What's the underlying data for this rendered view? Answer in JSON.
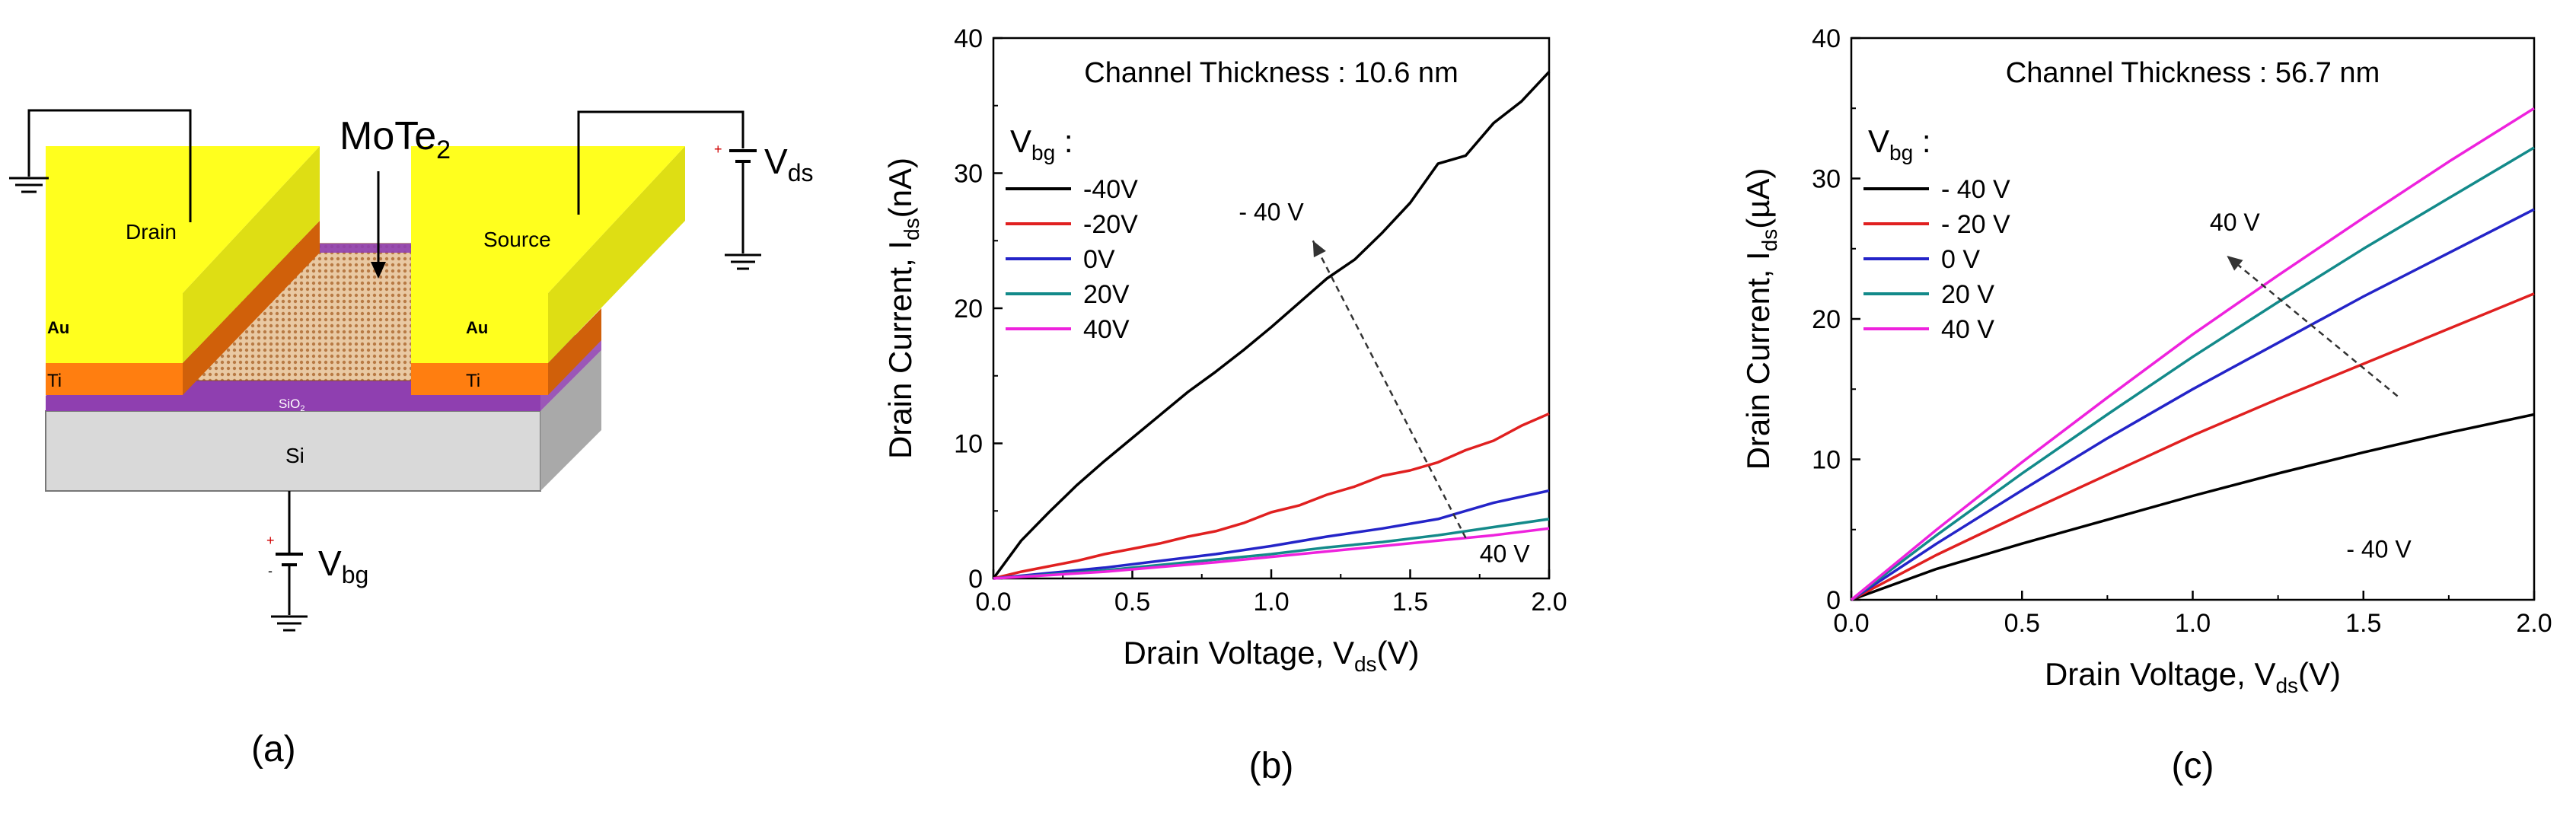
{
  "panel_a": {
    "caption": "(a)",
    "material": "MoTe",
    "material_sub": "2",
    "drain": "Drain",
    "source": "Source",
    "au_left": "Au",
    "au_right": "Au",
    "ti_left": "Ti",
    "ti_right": "Ti",
    "sio2": "SiO",
    "sio2_sub": "2",
    "si": "Si",
    "vds": "V",
    "vds_sub": "ds",
    "vbg": "V",
    "vbg_sub": "bg",
    "plus_sign": "+",
    "minus_sign": "-",
    "colors": {
      "au": "#ffff1e",
      "au_side": "#dede14",
      "ti": "#ff7e10",
      "ti_side": "#d0600a",
      "sio2": "#8f3fb0",
      "si": "#d9d9d9",
      "si_side": "#a9a9a9",
      "mote2": "#e9c9a3",
      "mote2_dot": "#b87a44"
    }
  },
  "chart_data": [
    {
      "type": "line",
      "panel": "(b)",
      "title": "Channel Thickness : 10.6 nm",
      "xlabel_main": "Drain Voltage, V",
      "xlabel_sub": "ds",
      "xlabel_tail": "(V)",
      "ylabel_main": "Drain Current, I",
      "ylabel_sub": "ds",
      "ylabel_tail": "(nA)",
      "xlim": [
        0,
        2.0
      ],
      "ylim": [
        0,
        40
      ],
      "xticks": [
        "0.0",
        "0.5",
        "1.0",
        "1.5",
        "2.0"
      ],
      "yticks": [
        "0",
        "10",
        "20",
        "30",
        "40"
      ],
      "xtick_values": [
        0,
        0.5,
        1.0,
        1.5,
        2.0
      ],
      "ytick_values": [
        0,
        10,
        20,
        30,
        40
      ],
      "legend_title": "V",
      "legend_title_sub": "bg",
      "legend_title_tail": " :",
      "legend_position": "top-left",
      "annotation_top": "- 40 V",
      "annotation_bottom": "40 V",
      "series": [
        {
          "name": "-40V",
          "color": "#000000",
          "x": [
            0,
            0.1,
            0.2,
            0.3,
            0.4,
            0.5,
            0.6,
            0.7,
            0.8,
            0.9,
            1.0,
            1.1,
            1.2,
            1.3,
            1.4,
            1.5,
            1.6,
            1.7,
            1.8,
            1.9,
            2.0
          ],
          "y": [
            0,
            2.8,
            4.9,
            6.9,
            8.7,
            10.4,
            12.1,
            13.8,
            15.3,
            16.9,
            18.6,
            20.4,
            22.2,
            23.6,
            25.6,
            27.8,
            30.7,
            31.3,
            33.7,
            35.3,
            37.5
          ]
        },
        {
          "name": "-20V",
          "color": "#e02020",
          "x": [
            0,
            0.1,
            0.2,
            0.3,
            0.4,
            0.5,
            0.6,
            0.7,
            0.8,
            0.9,
            1.0,
            1.1,
            1.2,
            1.3,
            1.4,
            1.5,
            1.6,
            1.7,
            1.8,
            1.9,
            2.0
          ],
          "y": [
            0,
            0.5,
            0.9,
            1.3,
            1.8,
            2.2,
            2.6,
            3.1,
            3.5,
            4.1,
            4.9,
            5.4,
            6.2,
            6.8,
            7.6,
            8.0,
            8.6,
            9.5,
            10.2,
            11.3,
            12.2
          ]
        },
        {
          "name": "0V",
          "color": "#2424c8",
          "x": [
            0,
            0.2,
            0.4,
            0.6,
            0.8,
            1.0,
            1.2,
            1.4,
            1.6,
            1.8,
            2.0
          ],
          "y": [
            0,
            0.4,
            0.8,
            1.3,
            1.8,
            2.4,
            3.1,
            3.7,
            4.4,
            5.6,
            6.5
          ]
        },
        {
          "name": "20V",
          "color": "#138a8a",
          "x": [
            0,
            0.2,
            0.4,
            0.6,
            0.8,
            1.0,
            1.2,
            1.4,
            1.6,
            1.8,
            2.0
          ],
          "y": [
            0,
            0.3,
            0.6,
            1.0,
            1.4,
            1.8,
            2.3,
            2.7,
            3.2,
            3.8,
            4.4
          ]
        },
        {
          "name": "40V",
          "color": "#ee22dd",
          "x": [
            0,
            0.2,
            0.4,
            0.6,
            0.8,
            1.0,
            1.2,
            1.4,
            1.6,
            1.8,
            2.0
          ],
          "y": [
            0,
            0.25,
            0.5,
            0.85,
            1.2,
            1.6,
            2.0,
            2.4,
            2.8,
            3.2,
            3.7
          ]
        }
      ]
    },
    {
      "type": "line",
      "panel": "(c)",
      "title": "Channel Thickness : 56.7 nm",
      "xlabel_main": "Drain Voltage, V",
      "xlabel_sub": "ds",
      "xlabel_tail": "(V)",
      "ylabel_main": "Drain Current, I",
      "ylabel_sub": "ds",
      "ylabel_tail": "(µA)",
      "xlim": [
        0,
        2.0
      ],
      "ylim": [
        0,
        40
      ],
      "xticks": [
        "0.0",
        "0.5",
        "1.0",
        "1.5",
        "2.0"
      ],
      "yticks": [
        "0",
        "10",
        "20",
        "30",
        "40"
      ],
      "xtick_values": [
        0,
        0.5,
        1.0,
        1.5,
        2.0
      ],
      "ytick_values": [
        0,
        10,
        20,
        30,
        40
      ],
      "legend_title": "V",
      "legend_title_sub": "bg",
      "legend_title_tail": " :",
      "legend_position": "top-left",
      "annotation_top": "40 V",
      "annotation_bottom": "- 40 V",
      "series": [
        {
          "name": "- 40 V",
          "color": "#000000",
          "x": [
            0,
            0.25,
            0.5,
            0.75,
            1.0,
            1.25,
            1.5,
            1.75,
            2.0
          ],
          "y": [
            0,
            2.2,
            4.0,
            5.7,
            7.4,
            9.0,
            10.5,
            11.9,
            13.2
          ]
        },
        {
          "name": "- 20 V",
          "color": "#e02020",
          "x": [
            0,
            0.25,
            0.5,
            0.75,
            1.0,
            1.25,
            1.5,
            1.75,
            2.0
          ],
          "y": [
            0,
            3.2,
            6.1,
            8.9,
            11.7,
            14.3,
            16.8,
            19.3,
            21.8
          ]
        },
        {
          "name": "0 V",
          "color": "#2424c8",
          "x": [
            0,
            0.25,
            0.5,
            0.75,
            1.0,
            1.25,
            1.5,
            1.75,
            2.0
          ],
          "y": [
            0,
            4.0,
            7.8,
            11.5,
            15.0,
            18.3,
            21.6,
            24.7,
            27.8
          ]
        },
        {
          "name": "20 V",
          "color": "#138a8a",
          "x": [
            0,
            0.25,
            0.5,
            0.75,
            1.0,
            1.25,
            1.5,
            1.75,
            2.0
          ],
          "y": [
            0,
            4.6,
            9.0,
            13.2,
            17.3,
            21.2,
            25.0,
            28.6,
            32.2
          ]
        },
        {
          "name": "40 V",
          "color": "#ee22dd",
          "x": [
            0,
            0.25,
            0.5,
            0.75,
            1.0,
            1.25,
            1.5,
            1.75,
            2.0
          ],
          "y": [
            0,
            5.0,
            9.8,
            14.4,
            18.9,
            23.1,
            27.2,
            31.2,
            35.0
          ]
        }
      ]
    }
  ]
}
